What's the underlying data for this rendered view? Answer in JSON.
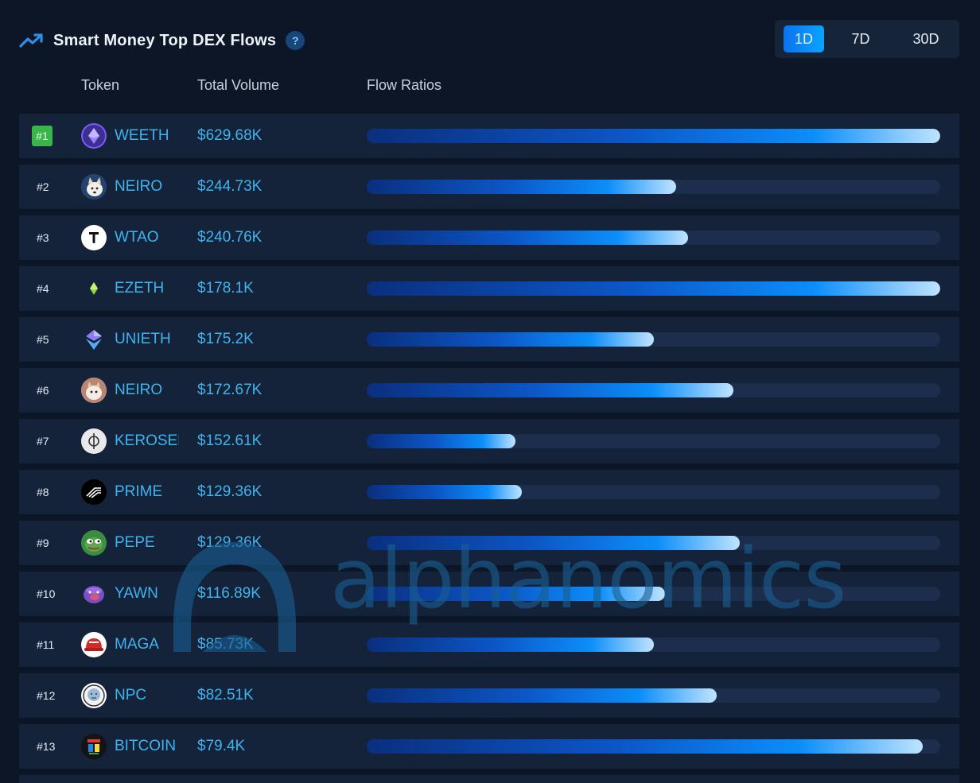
{
  "header": {
    "title": "Smart Money Top DEX Flows",
    "help_label": "?",
    "trend_icon": "trending-up-icon"
  },
  "period_toggle": {
    "options": [
      "1D",
      "7D",
      "30D"
    ],
    "selected": "1D"
  },
  "columns": {
    "token": "Token",
    "total_volume": "Total Volume",
    "flow_ratios": "Flow Ratios"
  },
  "rows": [
    {
      "rank": "#1",
      "token": "WEETH",
      "volume": "$629.68K",
      "flow_ratio": 1.0
    },
    {
      "rank": "#2",
      "token": "NEIRO",
      "volume": "$244.73K",
      "flow_ratio": 0.54
    },
    {
      "rank": "#3",
      "token": "WTAO",
      "volume": "$240.76K",
      "flow_ratio": 0.56
    },
    {
      "rank": "#4",
      "token": "EZETH",
      "volume": "$178.1K",
      "flow_ratio": 1.0
    },
    {
      "rank": "#5",
      "token": "UNIETH",
      "volume": "$175.2K",
      "flow_ratio": 0.5
    },
    {
      "rank": "#6",
      "token": "NEIRO",
      "volume": "$172.67K",
      "flow_ratio": 0.64
    },
    {
      "rank": "#7",
      "token": "KEROSENE",
      "volume": "$152.61K",
      "flow_ratio": 0.26
    },
    {
      "rank": "#8",
      "token": "PRIME",
      "volume": "$129.36K",
      "flow_ratio": 0.27
    },
    {
      "rank": "#9",
      "token": "PEPE",
      "volume": "$129.36K",
      "flow_ratio": 0.65
    },
    {
      "rank": "#10",
      "token": "YAWN",
      "volume": "$116.89K",
      "flow_ratio": 0.52
    },
    {
      "rank": "#11",
      "token": "MAGA",
      "volume": "$85.73K",
      "flow_ratio": 0.5
    },
    {
      "rank": "#12",
      "token": "NPC",
      "volume": "$82.51K",
      "flow_ratio": 0.61
    },
    {
      "rank": "#13",
      "token": "BITCOIN",
      "volume": "$79.4K",
      "flow_ratio": 0.97
    }
  ],
  "watermark": {
    "text": "alphanomics"
  },
  "colors": {
    "background": "#0c1627",
    "row": "#14223a",
    "accent": "#3fb4ee",
    "rank1_badge": "#39b54a"
  }
}
